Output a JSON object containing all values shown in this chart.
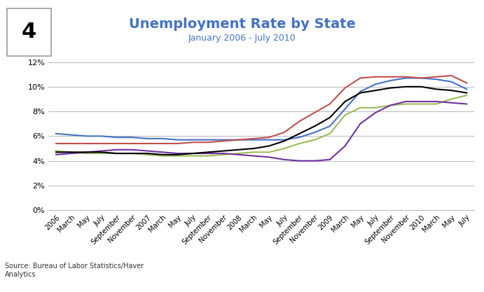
{
  "title": "Unemployment Rate by State",
  "subtitle": "January 2006 - July 2010",
  "source": "Source: Bureau of Labor Statistics/Haver\nAnalytics",
  "figure_number": "4",
  "title_color": "#4472C4",
  "subtitle_color": "#4472C4",
  "ylim": [
    0,
    0.13
  ],
  "yticks": [
    0,
    0.02,
    0.04,
    0.06,
    0.08,
    0.1,
    0.12
  ],
  "ytick_labels": [
    "0%",
    "2%",
    "4%",
    "6%",
    "8%",
    "10%",
    "12%"
  ],
  "x_labels": [
    "2006",
    "March",
    "May",
    "July",
    "September",
    "November",
    "2007",
    "March",
    "May",
    "July",
    "September",
    "November",
    "2008",
    "March",
    "May",
    "July",
    "September",
    "November",
    "2009",
    "March",
    "May",
    "July",
    "September",
    "November",
    "2010",
    "March",
    "May",
    "July"
  ],
  "series": {
    "Kentucky": {
      "color": "#4472C4",
      "values": [
        0.062,
        0.061,
        0.06,
        0.06,
        0.059,
        0.059,
        0.058,
        0.058,
        0.057,
        0.057,
        0.057,
        0.057,
        0.057,
        0.057,
        0.057,
        0.057,
        0.059,
        0.063,
        0.068,
        0.082,
        0.096,
        0.102,
        0.105,
        0.107,
        0.107,
        0.106,
        0.104,
        0.098
      ]
    },
    "Ohio": {
      "color": "#C0504D",
      "values": [
        0.054,
        0.054,
        0.054,
        0.054,
        0.054,
        0.054,
        0.054,
        0.054,
        0.054,
        0.055,
        0.055,
        0.056,
        0.057,
        0.058,
        0.059,
        0.063,
        0.072,
        0.079,
        0.086,
        0.099,
        0.107,
        0.108,
        0.108,
        0.108,
        0.107,
        0.108,
        0.109,
        0.103
      ]
    },
    "Pennsylvania": {
      "color": "#9BBB59",
      "values": [
        0.048,
        0.047,
        0.046,
        0.046,
        0.046,
        0.046,
        0.045,
        0.044,
        0.044,
        0.044,
        0.044,
        0.045,
        0.046,
        0.047,
        0.047,
        0.05,
        0.054,
        0.057,
        0.062,
        0.077,
        0.083,
        0.083,
        0.085,
        0.086,
        0.086,
        0.086,
        0.09,
        0.093
      ]
    },
    "West Virginia": {
      "color": "#7030A0",
      "values": [
        0.045,
        0.046,
        0.047,
        0.048,
        0.049,
        0.049,
        0.048,
        0.047,
        0.046,
        0.046,
        0.046,
        0.046,
        0.045,
        0.044,
        0.043,
        0.041,
        0.04,
        0.04,
        0.041,
        0.052,
        0.07,
        0.079,
        0.085,
        0.088,
        0.088,
        0.088,
        0.087,
        0.086
      ]
    },
    "US": {
      "color": "#000000",
      "values": [
        0.047,
        0.047,
        0.047,
        0.047,
        0.046,
        0.046,
        0.046,
        0.045,
        0.045,
        0.046,
        0.047,
        0.048,
        0.049,
        0.05,
        0.052,
        0.056,
        0.062,
        0.068,
        0.075,
        0.088,
        0.095,
        0.097,
        0.099,
        0.1,
        0.1,
        0.098,
        0.097,
        0.095
      ]
    }
  }
}
